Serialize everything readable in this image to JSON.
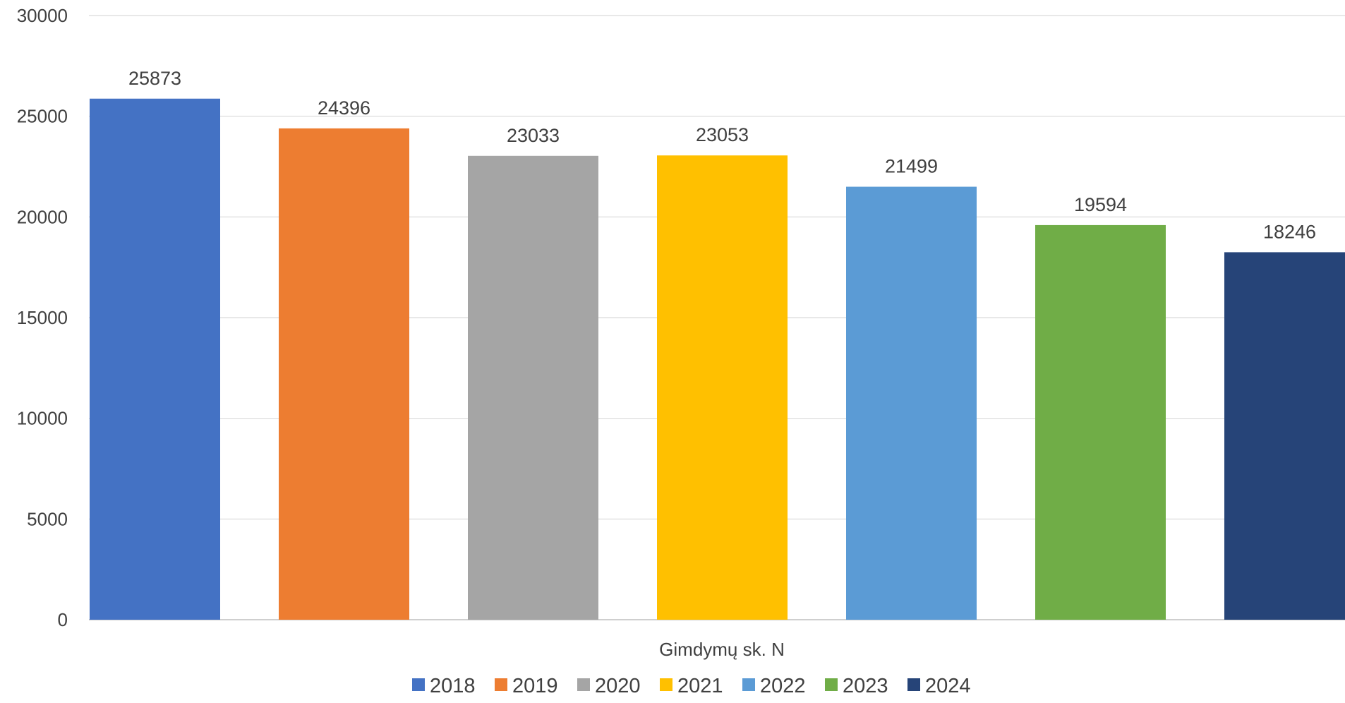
{
  "chart_data": {
    "type": "bar",
    "categories": [
      "Gimdymų sk. N"
    ],
    "series": [
      {
        "name": "2018",
        "values": [
          25873
        ],
        "color": "#4472C4"
      },
      {
        "name": "2019",
        "values": [
          24396
        ],
        "color": "#ED7D31"
      },
      {
        "name": "2020",
        "values": [
          23033
        ],
        "color": "#A5A5A5"
      },
      {
        "name": "2021",
        "values": [
          23053
        ],
        "color": "#FFC000"
      },
      {
        "name": "2022",
        "values": [
          21499
        ],
        "color": "#5B9BD5"
      },
      {
        "name": "2023",
        "values": [
          19594
        ],
        "color": "#70AD47"
      },
      {
        "name": "2024",
        "values": [
          18246
        ],
        "color": "#264478"
      }
    ],
    "title": "",
    "xlabel": "Gimdymų sk. N",
    "ylabel": "",
    "ylim": [
      0,
      30000
    ],
    "yticks": [
      0,
      5000,
      10000,
      15000,
      20000,
      25000,
      30000
    ],
    "data_labels": true,
    "grid": true,
    "legend": "bottom"
  }
}
